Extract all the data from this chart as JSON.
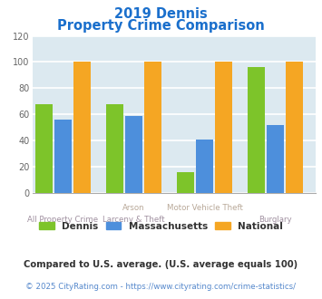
{
  "title_line1": "2019 Dennis",
  "title_line2": "Property Crime Comparison",
  "title_color": "#1a6fcc",
  "cat_labels_top": [
    "All Property Crime",
    "Arson",
    "Motor Vehicle Theft",
    "Burglary"
  ],
  "cat_labels_bot": [
    "",
    "Larceny & Theft",
    "",
    ""
  ],
  "dennis_values": [
    68,
    68,
    16,
    96
  ],
  "massachusetts_values": [
    56,
    59,
    41,
    52
  ],
  "national_values": [
    100,
    100,
    100,
    100
  ],
  "dennis_color": "#7dc42a",
  "massachusetts_color": "#4d8fdc",
  "national_color": "#f5a623",
  "ylim": [
    0,
    120
  ],
  "yticks": [
    0,
    20,
    40,
    60,
    80,
    100,
    120
  ],
  "plot_bg": "#dce9f0",
  "grid_color": "#ffffff",
  "xlabel_top_color": "#b8a898",
  "xlabel_bot_color": "#a090a0",
  "legend_dennis": "Dennis",
  "legend_massachusetts": "Massachusetts",
  "legend_national": "National",
  "footnote1": "Compared to U.S. average. (U.S. average equals 100)",
  "footnote2": "© 2025 CityRating.com - https://www.cityrating.com/crime-statistics/",
  "footnote1_color": "#333333",
  "footnote2_color": "#5588cc"
}
